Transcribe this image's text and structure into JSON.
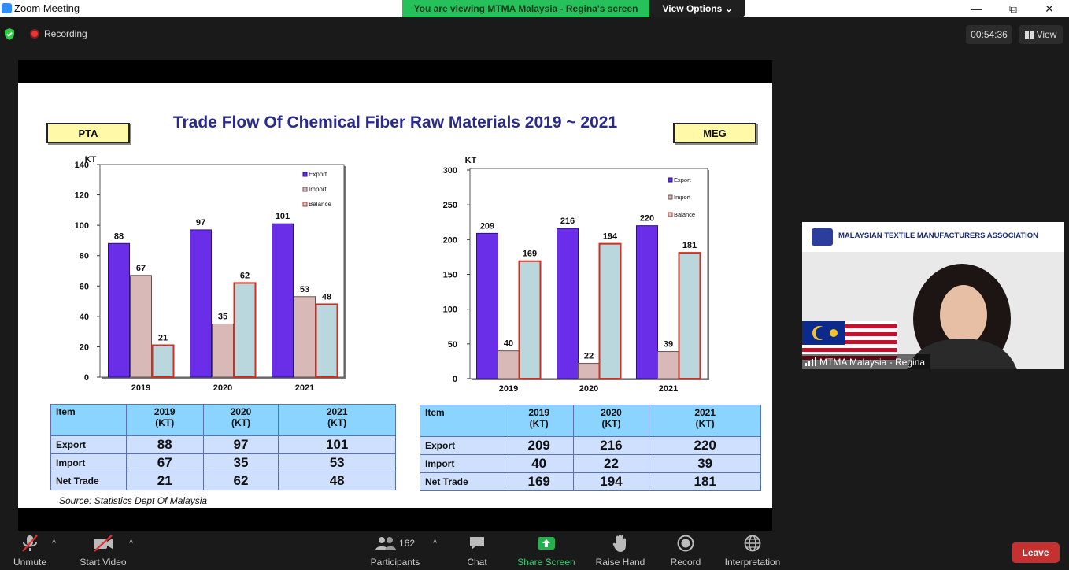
{
  "window": {
    "title": "Zoom Meeting"
  },
  "share_banner": {
    "text": "You are viewing MTMA Malaysia - Regina's screen",
    "view_options": "View Options",
    "chevron": "⌄"
  },
  "window_controls": {
    "minimize": "—",
    "restore": "⧉",
    "close": "✕"
  },
  "status": {
    "recording": "Recording",
    "timer": "00:54:36",
    "view": "View"
  },
  "slide": {
    "title": "Trade Flow Of Chemical Fiber Raw Materials 2019 ~ 2021",
    "left_tag": "PTA",
    "right_tag": "MEG",
    "source": "Source: Statistics Dept Of Malaysia",
    "pta_table": {
      "header": [
        "Item",
        "2019\n(KT)",
        "2020\n(KT)",
        "2021\n(KT)"
      ],
      "rows": [
        {
          "label": "Export",
          "values": [
            "88",
            "97",
            "101"
          ]
        },
        {
          "label": "Import",
          "values": [
            "67",
            "35",
            "53"
          ]
        },
        {
          "label": "Net Trade",
          "values": [
            "21",
            "62",
            "48"
          ]
        }
      ]
    },
    "meg_table": {
      "header": [
        "Item",
        "2019\n(KT)",
        "2020\n(KT)",
        "2021\n(KT)"
      ],
      "rows": [
        {
          "label": "Export",
          "values": [
            "209",
            "216",
            "220"
          ]
        },
        {
          "label": "Import",
          "values": [
            "40",
            "22",
            "39"
          ]
        },
        {
          "label": "Net Trade",
          "values": [
            "169",
            "194",
            "181"
          ]
        }
      ]
    }
  },
  "chart_data": [
    {
      "type": "bar",
      "ylabel": "KT",
      "categories": [
        "2019",
        "2020",
        "2021"
      ],
      "ylim": [
        0,
        140
      ],
      "yticks": [
        0,
        20,
        40,
        60,
        80,
        100,
        120,
        140
      ],
      "series": [
        {
          "name": "Export",
          "values": [
            88,
            97,
            101
          ]
        },
        {
          "name": "Import",
          "values": [
            67,
            35,
            53
          ]
        },
        {
          "name": "Balance",
          "values": [
            21,
            62,
            48
          ]
        }
      ],
      "legend": "top-right"
    },
    {
      "type": "bar",
      "ylabel": "KT",
      "categories": [
        "2019",
        "2020",
        "2021"
      ],
      "ylim": [
        0,
        300
      ],
      "yticks": [
        0,
        50,
        100,
        150,
        200,
        250,
        300
      ],
      "series": [
        {
          "name": "Export",
          "values": [
            209,
            216,
            220
          ]
        },
        {
          "name": "Import",
          "values": [
            40,
            22,
            39
          ]
        },
        {
          "name": "Balance",
          "values": [
            169,
            194,
            181
          ]
        }
      ],
      "legend": "top-right"
    }
  ],
  "series_colors": {
    "Export": "#6a2ee8",
    "Import": "#d9b8b8",
    "Balance": "#b9d7dc",
    "BalanceBorder": "#d03020"
  },
  "video": {
    "banner": "MALAYSIAN TEXTILE MANUFACTURERS ASSOCIATION",
    "name": "MTMA Malaysia - Regina"
  },
  "toolbar": {
    "unmute": "Unmute",
    "start_video": "Start Video",
    "participants": "Participants",
    "participants_count": "162",
    "chat": "Chat",
    "share_screen": "Share Screen",
    "raise_hand": "Raise Hand",
    "record": "Record",
    "interpretation": "Interpretation",
    "leave": "Leave",
    "caret": "^"
  },
  "icons": [
    "app-icon",
    "shield-icon",
    "record-dot-icon",
    "grid-view-icon",
    "mic-muted-icon",
    "video-off-icon",
    "participants-icon",
    "chat-icon",
    "share-screen-icon",
    "raise-hand-icon",
    "record-icon",
    "globe-icon",
    "signal-icon"
  ]
}
